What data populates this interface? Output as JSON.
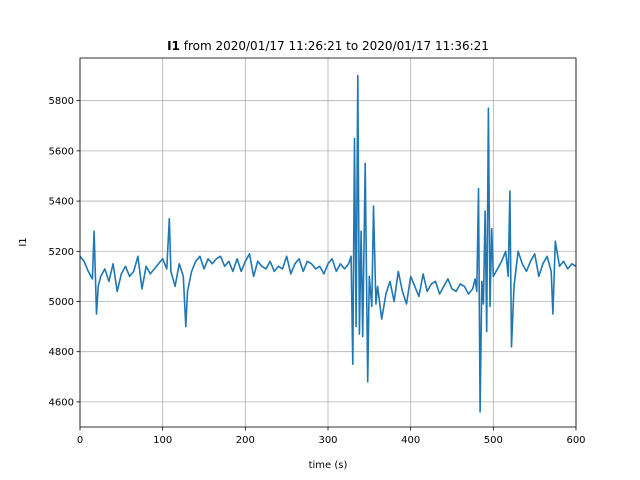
{
  "chart_data": {
    "type": "line",
    "title_bold": "I1",
    "title_rest": " from 2020/01/17 11:26:21 to 2020/01/17 11:36:21",
    "xlabel": "time (s)",
    "ylabel": "I1",
    "xlim": [
      0,
      600
    ],
    "ylim": [
      4500,
      5970
    ],
    "xticks": [
      0,
      100,
      200,
      300,
      400,
      500,
      600
    ],
    "yticks": [
      4600,
      4800,
      5000,
      5200,
      5400,
      5600,
      5800
    ],
    "grid": true,
    "line_color": "#1f77b4",
    "series": [
      {
        "x": [
          0,
          5,
          10,
          15,
          17,
          20,
          22,
          25,
          30,
          35,
          40,
          45,
          50,
          55,
          60,
          65,
          70,
          75,
          80,
          85,
          90,
          95,
          100,
          105,
          108,
          110,
          115,
          120,
          125,
          128,
          130,
          135,
          140,
          145,
          150,
          155,
          160,
          165,
          170,
          175,
          180,
          185,
          190,
          195,
          200,
          205,
          210,
          215,
          220,
          225,
          230,
          235,
          240,
          245,
          250,
          255,
          260,
          265,
          270,
          275,
          280,
          285,
          290,
          295,
          300,
          305,
          310,
          315,
          320,
          325,
          328,
          330,
          332,
          334,
          336,
          338,
          340,
          342,
          345,
          348,
          350,
          353,
          355,
          358,
          360,
          365,
          370,
          375,
          380,
          385,
          390,
          395,
          400,
          405,
          410,
          415,
          420,
          425,
          430,
          435,
          440,
          445,
          450,
          455,
          460,
          465,
          470,
          475,
          478,
          480,
          482,
          484,
          486,
          488,
          490,
          492,
          494,
          496,
          498,
          500,
          505,
          510,
          515,
          518,
          520,
          522,
          525,
          530,
          535,
          540,
          545,
          550,
          555,
          560,
          565,
          570,
          572,
          575,
          580,
          585,
          590,
          595,
          600
        ],
        "y": [
          5180,
          5160,
          5120,
          5090,
          5280,
          4950,
          5060,
          5100,
          5130,
          5080,
          5150,
          5040,
          5110,
          5140,
          5100,
          5120,
          5180,
          5050,
          5140,
          5110,
          5130,
          5150,
          5170,
          5130,
          5330,
          5120,
          5060,
          5150,
          5100,
          4900,
          5040,
          5120,
          5160,
          5180,
          5130,
          5170,
          5150,
          5170,
          5180,
          5140,
          5160,
          5120,
          5170,
          5120,
          5160,
          5190,
          5100,
          5160,
          5140,
          5130,
          5160,
          5120,
          5140,
          5130,
          5180,
          5110,
          5150,
          5170,
          5120,
          5160,
          5150,
          5130,
          5140,
          5110,
          5150,
          5170,
          5120,
          5150,
          5130,
          5150,
          5180,
          4750,
          5650,
          4900,
          5900,
          4870,
          5280,
          4860,
          5550,
          4680,
          5100,
          4980,
          5380,
          4990,
          5060,
          4930,
          5030,
          5080,
          5000,
          5120,
          5040,
          4990,
          5100,
          5060,
          5020,
          5110,
          5040,
          5070,
          5080,
          5030,
          5060,
          5090,
          5050,
          5040,
          5070,
          5060,
          5030,
          5050,
          5090,
          5040,
          5450,
          4560,
          5080,
          4990,
          5360,
          4880,
          5770,
          4980,
          5290,
          5100,
          5130,
          5160,
          5200,
          5100,
          5440,
          4820,
          5060,
          5200,
          5150,
          5120,
          5160,
          5190,
          5100,
          5150,
          5180,
          5120,
          4950,
          5240,
          5140,
          5160,
          5130,
          5150,
          5140
        ]
      }
    ]
  }
}
